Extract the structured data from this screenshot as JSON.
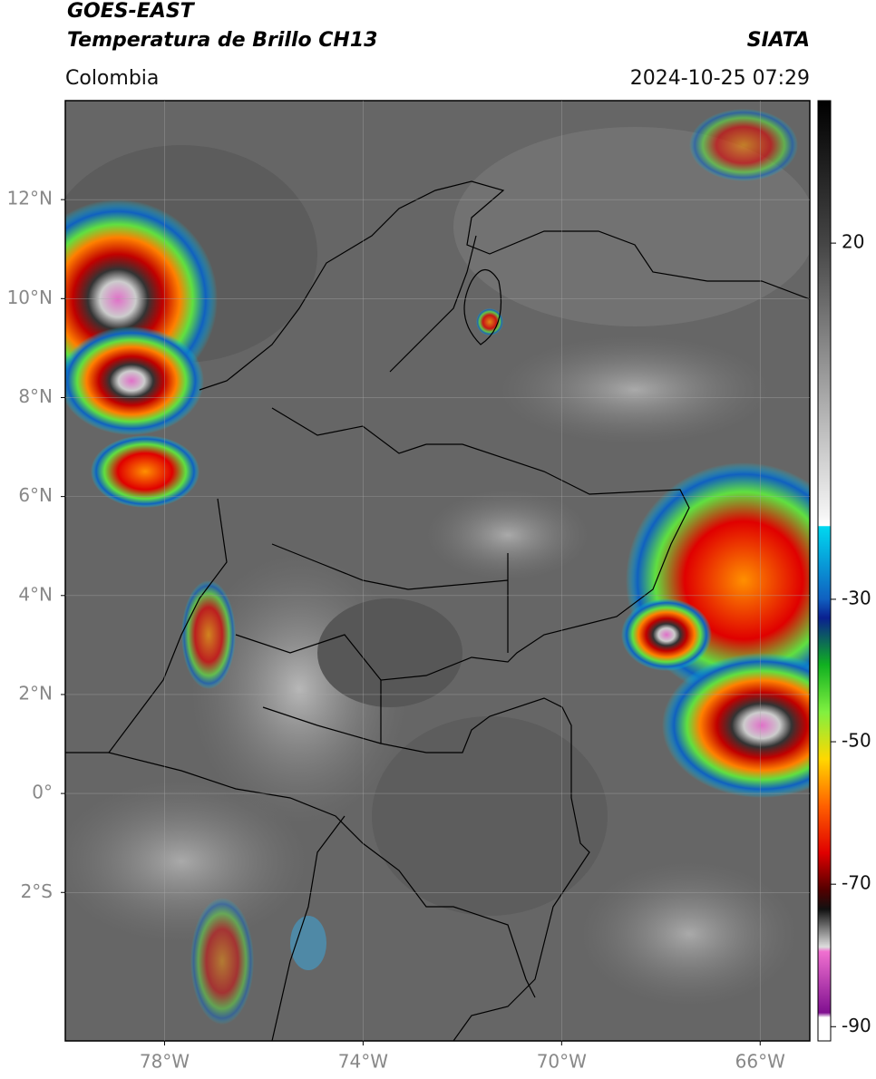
{
  "header": {
    "satellite": "GOES-EAST",
    "product": "Temperatura de Brillo CH13",
    "region": "Colombia",
    "source": "SIATA",
    "datetime": "2024-10-25 07:29"
  },
  "map": {
    "xlim": [
      -80,
      -65
    ],
    "ylim": [
      -5,
      14
    ],
    "xticks": [
      {
        "value": -78,
        "label": "78°W"
      },
      {
        "value": -74,
        "label": "74°W"
      },
      {
        "value": -70,
        "label": "70°W"
      },
      {
        "value": -66,
        "label": "66°W"
      }
    ],
    "yticks": [
      {
        "value": -2,
        "label": "2°S"
      },
      {
        "value": 0,
        "label": "0°"
      },
      {
        "value": 2,
        "label": "2°N"
      },
      {
        "value": 4,
        "label": "4°N"
      },
      {
        "value": 6,
        "label": "6°N"
      },
      {
        "value": 8,
        "label": "8°N"
      },
      {
        "value": 10,
        "label": "10°N"
      },
      {
        "value": 12,
        "label": "12°N"
      }
    ]
  },
  "colorbar": {
    "lim": [
      -92,
      40
    ],
    "ticks": [
      20,
      -30,
      -50,
      -70,
      -90
    ]
  }
}
